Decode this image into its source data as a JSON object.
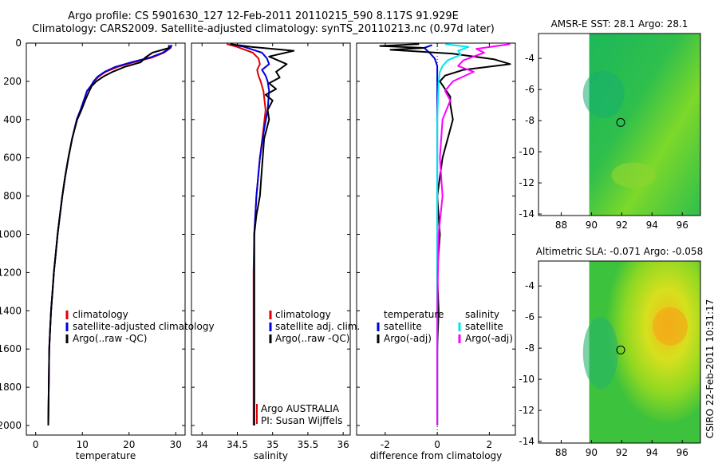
{
  "header": {
    "title_line1": "Argo profile: CS 5901630_127 12-Feb-2011 20110215_590 8.117S 91.929E",
    "title_line2": "Climatology: CARS2009. Satellite-adjusted climatology: synTS_20110213.nc (0.97d later)"
  },
  "colors": {
    "climatology": "#e00000",
    "satellite": "#0000dd",
    "argo": "#000000",
    "satellite_salinity_diff": "#00e5ee",
    "argo_salinity_diff": "#ff00ff"
  },
  "chart_data": [
    {
      "type": "line",
      "xlabel": "temperature",
      "xlim": [
        -2,
        32
      ],
      "ylim": [
        2050,
        0
      ],
      "xticks": [
        "0",
        "10",
        "20",
        "30"
      ],
      "yticks": [
        "0",
        "200",
        "400",
        "600",
        "800",
        "1000",
        "1200",
        "1400",
        "1600",
        "1800",
        "2000"
      ],
      "legend": [
        "climatology",
        "satellite-adjusted climatology",
        "Argo(..raw -QC)"
      ],
      "series": [
        {
          "name": "climatology",
          "color_key": "climatology",
          "x": [
            29.2,
            28.9,
            27.5,
            25.0,
            21.0,
            17.5,
            15.0,
            13.5,
            12.5,
            11.8,
            11.0,
            10.3,
            9.6,
            8.8,
            7.8,
            7.0,
            6.3,
            5.7,
            5.2,
            4.7,
            4.3,
            3.9,
            3.6,
            3.3,
            3.1,
            2.9,
            2.7
          ],
          "y": [
            10,
            25,
            50,
            75,
            100,
            125,
            150,
            175,
            200,
            225,
            250,
            300,
            350,
            400,
            500,
            600,
            700,
            800,
            900,
            1000,
            1100,
            1200,
            1300,
            1400,
            1500,
            1600,
            2000
          ]
        },
        {
          "name": "satellite-adjusted climatology",
          "color_key": "satellite",
          "x": [
            29.0,
            28.8,
            27.2,
            24.5,
            20.5,
            17.0,
            14.8,
            13.3,
            12.4,
            11.8,
            11.0,
            10.3,
            9.6,
            8.8,
            7.8,
            7.0,
            6.3,
            5.7,
            5.2,
            4.7,
            4.3,
            3.9,
            3.6,
            3.3,
            3.1,
            2.9,
            2.7
          ],
          "y": [
            10,
            25,
            50,
            75,
            100,
            125,
            150,
            175,
            200,
            225,
            250,
            300,
            350,
            400,
            500,
            600,
            700,
            800,
            900,
            1000,
            1100,
            1200,
            1300,
            1400,
            1500,
            1600,
            2000
          ]
        },
        {
          "name": "Argo(..raw -QC)",
          "color_key": "argo",
          "x": [
            28.5,
            28.6,
            25.0,
            23.5,
            22.5,
            19.0,
            16.5,
            14.5,
            13.0,
            12.0,
            11.5,
            10.6,
            9.8,
            8.9,
            7.8,
            7.0,
            6.3,
            5.7,
            5.2,
            4.7,
            4.3,
            3.9,
            3.6,
            3.3,
            3.1,
            2.9,
            2.7
          ],
          "y": [
            10,
            25,
            50,
            75,
            100,
            125,
            150,
            175,
            200,
            225,
            250,
            300,
            350,
            400,
            500,
            600,
            700,
            800,
            900,
            1000,
            1100,
            1200,
            1300,
            1400,
            1500,
            1600,
            2000
          ]
        }
      ]
    },
    {
      "type": "line",
      "xlabel": "salinity",
      "xlim": [
        33.85,
        36.1
      ],
      "ylim": [
        2050,
        0
      ],
      "xticks": [
        "34",
        "34.5",
        "35",
        "35.5",
        "36"
      ],
      "legend": [
        "climatology",
        "satellite adj. clim.",
        "Argo(..raw -QC)"
      ],
      "annotations": [
        "Argo AUSTRALIA",
        "PI: Susan Wijffels"
      ],
      "series": [
        {
          "name": "climatology",
          "color_key": "climatology",
          "x": [
            34.35,
            34.5,
            34.72,
            34.8,
            34.82,
            34.78,
            34.8,
            34.83,
            34.87,
            34.9,
            34.87,
            34.82,
            34.77,
            34.74,
            34.73,
            34.73,
            34.73,
            34.73,
            34.73
          ],
          "y": [
            5,
            20,
            50,
            80,
            110,
            140,
            170,
            200,
            250,
            350,
            450,
            600,
            800,
            1000,
            1200,
            1400,
            1600,
            1800,
            2000
          ]
        },
        {
          "name": "satellite adj. clim.",
          "color_key": "satellite",
          "x": [
            34.4,
            34.6,
            34.85,
            34.92,
            34.95,
            34.85,
            34.9,
            34.93,
            34.95,
            34.93,
            34.88,
            34.82,
            34.77,
            34.74,
            34.74,
            34.74,
            34.74,
            34.74,
            34.74
          ],
          "y": [
            5,
            20,
            50,
            80,
            110,
            140,
            170,
            200,
            250,
            350,
            450,
            600,
            800,
            1000,
            1200,
            1400,
            1600,
            1800,
            2000
          ]
        },
        {
          "name": "Argo(..raw -QC)",
          "color_key": "argo",
          "x": [
            34.4,
            34.7,
            35.3,
            34.95,
            35.2,
            35.05,
            35.1,
            34.95,
            35.05,
            34.9,
            35.0,
            34.93,
            34.95,
            34.88,
            34.85,
            34.82,
            34.77,
            34.74,
            34.74,
            34.74,
            34.74,
            34.74
          ],
          "y": [
            5,
            20,
            40,
            70,
            110,
            150,
            180,
            210,
            240,
            270,
            300,
            350,
            400,
            500,
            650,
            800,
            900,
            1000,
            1200,
            1400,
            1800,
            2000
          ]
        }
      ]
    },
    {
      "type": "line",
      "xlabel": "difference from climatology",
      "xlim": [
        -3.1,
        3.0
      ],
      "ylim": [
        2050,
        0
      ],
      "xticks": [
        "-2",
        "0",
        "2"
      ],
      "legend": [
        "temperature",
        "satellite",
        "Argo(-adj)",
        "salinity",
        "satellite",
        "Argo(-adj)"
      ],
      "series": [
        {
          "name": "temperature satellite",
          "color_key": "satellite",
          "x": [
            -0.2,
            -0.5,
            -0.3,
            -0.1,
            0.0,
            0.0,
            0.0,
            0.0,
            0.0
          ],
          "y": [
            10,
            25,
            50,
            80,
            120,
            200,
            400,
            1000,
            2000
          ]
        },
        {
          "name": "temperature Argo(-adj)",
          "color_key": "argo",
          "x": [
            -0.7,
            -2.2,
            -0.5,
            -1.8,
            0.6,
            2.2,
            2.8,
            1.0,
            0.3,
            0.1,
            0.3,
            0.5,
            0.5,
            0.6,
            0.4,
            0.2,
            0.1,
            0.0,
            0.1,
            0.0,
            0.05,
            0.0,
            0.0,
            0.0
          ],
          "y": [
            5,
            15,
            25,
            35,
            55,
            85,
            110,
            140,
            170,
            200,
            240,
            280,
            320,
            400,
            500,
            600,
            700,
            800,
            1000,
            1200,
            1400,
            1600,
            1800,
            2000
          ]
        },
        {
          "name": "salinity satellite",
          "color_key": "satellite_salinity_diff",
          "x": [
            0.3,
            1.2,
            0.8,
            0.9,
            0.4,
            0.2,
            0.1,
            0.05,
            0.0,
            0.0,
            0.0,
            0.0
          ],
          "y": [
            5,
            20,
            40,
            60,
            90,
            120,
            150,
            200,
            400,
            1000,
            1600,
            2000
          ]
        },
        {
          "name": "salinity Argo(-adj)",
          "color_key": "argo_salinity_diff",
          "x": [
            2.8,
            1.5,
            1.8,
            1.0,
            0.8,
            1.4,
            0.6,
            0.3,
            0.5,
            0.2,
            0.1,
            0.2,
            0.05,
            0.0,
            0.0,
            0.0
          ],
          "y": [
            5,
            30,
            50,
            90,
            120,
            150,
            200,
            250,
            300,
            400,
            600,
            800,
            1000,
            1400,
            1800,
            2000
          ]
        }
      ]
    },
    {
      "type": "heatmap",
      "title": "AMSR-E SST: 28.1 Argo: 28.1",
      "xlim": [
        86.5,
        97.2
      ],
      "ylim": [
        -14.1,
        -2.4
      ],
      "xticks": [
        "88",
        "90",
        "92",
        "94",
        "96"
      ],
      "yticks": [
        "-4",
        "-6",
        "-8",
        "-10",
        "-12",
        "-14"
      ],
      "data_extent": {
        "x": [
          89.85,
          97.2
        ],
        "y": [
          -14.1,
          -2.4
        ]
      },
      "argo_position": {
        "lon": 91.929,
        "lat": -8.117
      }
    },
    {
      "type": "heatmap",
      "title": "Altimetric SLA: -0.071 Argo: -0.058",
      "xlim": [
        86.5,
        97.2
      ],
      "ylim": [
        -14.1,
        -2.4
      ],
      "xticks": [
        "88",
        "90",
        "92",
        "94",
        "96"
      ],
      "yticks": [
        "-4",
        "-6",
        "-8",
        "-10",
        "-12",
        "-14"
      ],
      "data_extent": {
        "x": [
          89.85,
          97.2
        ],
        "y": [
          -14.1,
          -2.4
        ]
      },
      "argo_position": {
        "lon": 91.929,
        "lat": -8.117
      }
    }
  ],
  "footer": {
    "stamp": "CSIRO 22-Feb-2011 10:31:17"
  }
}
